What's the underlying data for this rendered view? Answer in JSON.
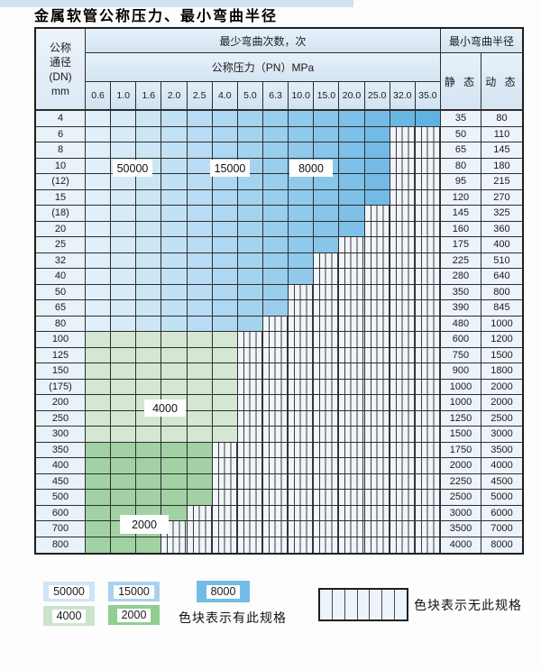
{
  "title": "金属软管公称压力、最小弯曲半径",
  "table": {
    "header": {
      "dn_lines": [
        "公称",
        "通径",
        "(DN)",
        "mm"
      ],
      "bend_title": "最少弯曲次数，次",
      "pn_title": "公称压力（PN）MPa",
      "pressures": [
        "0.6",
        "1.0",
        "1.6",
        "2.0",
        "2.5",
        "4.0",
        "5.0",
        "6.3",
        "10.0",
        "15.0",
        "20.0",
        "25.0",
        "32.0",
        "35.0"
      ],
      "radius_title": "最小弯曲半径",
      "static_label": "静 态",
      "dynamic_label": "动 态"
    },
    "rows": [
      {
        "dn": "4",
        "colored": 14,
        "tier": "blue",
        "static": "35",
        "dynamic": "80"
      },
      {
        "dn": "6",
        "colored": 12,
        "tier": "blue",
        "static": "50",
        "dynamic": "110"
      },
      {
        "dn": "8",
        "colored": 12,
        "tier": "blue",
        "static": "65",
        "dynamic": "145"
      },
      {
        "dn": "10",
        "colored": 12,
        "tier": "blue",
        "static": "80",
        "dynamic": "180"
      },
      {
        "dn": "(12)",
        "colored": 12,
        "tier": "blue",
        "static": "95",
        "dynamic": "215"
      },
      {
        "dn": "15",
        "colored": 12,
        "tier": "blue",
        "static": "120",
        "dynamic": "270"
      },
      {
        "dn": "(18)",
        "colored": 11,
        "tier": "blue",
        "static": "145",
        "dynamic": "325"
      },
      {
        "dn": "20",
        "colored": 11,
        "tier": "blue",
        "static": "160",
        "dynamic": "360"
      },
      {
        "dn": "25",
        "colored": 10,
        "tier": "blue",
        "static": "175",
        "dynamic": "400"
      },
      {
        "dn": "32",
        "colored": 9,
        "tier": "blue",
        "static": "225",
        "dynamic": "510"
      },
      {
        "dn": "40",
        "colored": 9,
        "tier": "blue",
        "static": "280",
        "dynamic": "640"
      },
      {
        "dn": "50",
        "colored": 8,
        "tier": "blue",
        "static": "350",
        "dynamic": "800"
      },
      {
        "dn": "65",
        "colored": 8,
        "tier": "blue",
        "static": "390",
        "dynamic": "845"
      },
      {
        "dn": "80",
        "colored": 7,
        "tier": "blue",
        "static": "480",
        "dynamic": "1000"
      },
      {
        "dn": "100",
        "colored": 6,
        "tier": "green_light",
        "static": "600",
        "dynamic": "1200"
      },
      {
        "dn": "125",
        "colored": 6,
        "tier": "green_light",
        "static": "750",
        "dynamic": "1500"
      },
      {
        "dn": "150",
        "colored": 6,
        "tier": "green_light",
        "static": "900",
        "dynamic": "1800"
      },
      {
        "dn": "(175)",
        "colored": 6,
        "tier": "green_light",
        "static": "1000",
        "dynamic": "2000"
      },
      {
        "dn": "200",
        "colored": 6,
        "tier": "green_light",
        "static": "1000",
        "dynamic": "2000"
      },
      {
        "dn": "250",
        "colored": 6,
        "tier": "green_light",
        "static": "1250",
        "dynamic": "2500"
      },
      {
        "dn": "300",
        "colored": 6,
        "tier": "green_light",
        "static": "1500",
        "dynamic": "3000"
      },
      {
        "dn": "350",
        "colored": 5,
        "tier": "green_medium",
        "static": "1750",
        "dynamic": "3500"
      },
      {
        "dn": "400",
        "colored": 5,
        "tier": "green_medium",
        "static": "2000",
        "dynamic": "4000"
      },
      {
        "dn": "450",
        "colored": 5,
        "tier": "green_medium",
        "static": "2250",
        "dynamic": "4500"
      },
      {
        "dn": "500",
        "colored": 5,
        "tier": "green_medium",
        "static": "2500",
        "dynamic": "5000"
      },
      {
        "dn": "600",
        "colored": 4,
        "tier": "green_medium",
        "static": "3000",
        "dynamic": "6000"
      },
      {
        "dn": "700",
        "colored": 3,
        "tier": "green_medium",
        "static": "3500",
        "dynamic": "7000"
      },
      {
        "dn": "800",
        "colored": 3,
        "tier": "green_medium",
        "static": "4000",
        "dynamic": "8000"
      }
    ],
    "annotations": {
      "a1": "50000",
      "a2": "15000",
      "a3": "8000",
      "a4": "4000",
      "a5": "2000"
    }
  },
  "legend": {
    "items": [
      {
        "label": "50000",
        "color": "#cfe4f6"
      },
      {
        "label": "15000",
        "color": "#a8d2ee"
      },
      {
        "label": "8000",
        "color": "#74bce7"
      },
      {
        "label": "4000",
        "color": "#cde3cb"
      },
      {
        "label": "2000",
        "color": "#90ce92"
      }
    ],
    "has_spec_text": "色块表示有此规格",
    "no_spec_text": "色块表示无此规格"
  },
  "colors": {
    "blue_start": "#e0effa",
    "blue_end": "#5fb2e2",
    "green_light": "#d5e7d2",
    "green_medium": "#a2d2a3",
    "stripe_bg": "#f0f5fb",
    "border": "#2d2d2d"
  }
}
